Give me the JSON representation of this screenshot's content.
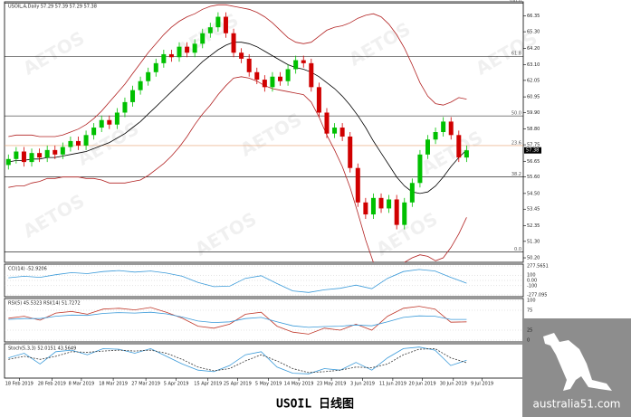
{
  "chart_data": {
    "type": "candlestick",
    "title": "USOIL,A,Daily 57.29 57.39 57.29 57.38",
    "candles": [
      [
        56.4,
        57.1,
        56.1,
        56.8
      ],
      [
        56.8,
        57.6,
        56.5,
        57.3
      ],
      [
        57.3,
        57.6,
        56.3,
        56.6
      ],
      [
        56.6,
        57.5,
        56.3,
        57.2
      ],
      [
        57.2,
        57.5,
        56.6,
        56.9
      ],
      [
        56.9,
        57.7,
        56.6,
        57.4
      ],
      [
        57.4,
        57.7,
        56.8,
        57.1
      ],
      [
        57.1,
        57.9,
        56.8,
        57.6
      ],
      [
        57.6,
        58.3,
        57.3,
        58.0
      ],
      [
        58.0,
        58.3,
        57.4,
        57.7
      ],
      [
        57.7,
        58.7,
        57.4,
        58.4
      ],
      [
        58.4,
        59.2,
        58.1,
        58.9
      ],
      [
        58.9,
        59.7,
        58.6,
        59.4
      ],
      [
        59.4,
        59.7,
        58.8,
        59.1
      ],
      [
        59.1,
        60.2,
        58.8,
        59.9
      ],
      [
        59.9,
        60.9,
        59.6,
        60.6
      ],
      [
        60.6,
        61.7,
        60.3,
        61.4
      ],
      [
        61.4,
        62.3,
        61.1,
        62.0
      ],
      [
        62.0,
        62.9,
        61.7,
        62.6
      ],
      [
        62.6,
        63.5,
        62.3,
        63.2
      ],
      [
        63.2,
        64.1,
        62.9,
        63.8
      ],
      [
        63.8,
        64.1,
        63.3,
        63.6
      ],
      [
        63.6,
        64.6,
        63.3,
        64.3
      ],
      [
        64.3,
        64.6,
        63.6,
        63.9
      ],
      [
        63.9,
        64.8,
        63.6,
        64.5
      ],
      [
        64.5,
        65.5,
        64.2,
        65.2
      ],
      [
        65.2,
        65.9,
        64.9,
        65.6
      ],
      [
        65.6,
        66.6,
        65.3,
        66.3
      ],
      [
        66.3,
        66.6,
        64.9,
        65.2
      ],
      [
        65.2,
        65.5,
        63.6,
        63.9
      ],
      [
        63.9,
        64.2,
        63.2,
        63.5
      ],
      [
        63.5,
        63.8,
        62.3,
        62.6
      ],
      [
        62.6,
        62.9,
        61.8,
        62.1
      ],
      [
        62.1,
        62.4,
        61.3,
        61.6
      ],
      [
        61.6,
        62.6,
        61.3,
        62.3
      ],
      [
        62.3,
        62.6,
        61.7,
        62.0
      ],
      [
        62.0,
        63.1,
        61.7,
        62.8
      ],
      [
        62.8,
        63.7,
        62.5,
        63.4
      ],
      [
        63.4,
        63.7,
        62.9,
        63.2
      ],
      [
        63.2,
        63.5,
        61.3,
        61.6
      ],
      [
        61.6,
        61.9,
        59.6,
        59.9
      ],
      [
        59.9,
        60.2,
        58.2,
        58.5
      ],
      [
        58.5,
        59.2,
        58.2,
        58.9
      ],
      [
        58.9,
        59.2,
        58.0,
        58.3
      ],
      [
        58.3,
        58.6,
        55.9,
        56.2
      ],
      [
        56.2,
        56.5,
        53.6,
        53.9
      ],
      [
        53.9,
        54.2,
        52.8,
        53.1
      ],
      [
        53.1,
        54.5,
        52.8,
        54.2
      ],
      [
        54.2,
        54.5,
        53.2,
        53.5
      ],
      [
        53.5,
        54.4,
        53.2,
        54.1
      ],
      [
        54.1,
        54.4,
        52.1,
        52.4
      ],
      [
        52.4,
        54.2,
        52.1,
        53.9
      ],
      [
        53.9,
        55.5,
        53.6,
        55.2
      ],
      [
        55.2,
        57.4,
        54.9,
        57.1
      ],
      [
        57.1,
        58.4,
        56.8,
        58.1
      ],
      [
        58.1,
        58.9,
        57.8,
        58.6
      ],
      [
        58.6,
        59.6,
        58.3,
        59.3
      ],
      [
        59.3,
        59.6,
        58.1,
        58.4
      ],
      [
        58.4,
        58.7,
        56.6,
        56.9
      ],
      [
        56.9,
        57.7,
        56.6,
        57.38
      ]
    ],
    "up_color": "#00c000",
    "down_color": "#d00000",
    "ma": {
      "color": "#000000",
      "values": [
        56.6,
        56.7,
        56.7,
        56.8,
        56.8,
        56.9,
        56.9,
        57.0,
        57.1,
        57.2,
        57.3,
        57.5,
        57.7,
        57.9,
        58.2,
        58.5,
        58.9,
        59.3,
        59.8,
        60.3,
        60.8,
        61.3,
        61.8,
        62.3,
        62.8,
        63.3,
        63.7,
        64.1,
        64.4,
        64.6,
        64.6,
        64.5,
        64.3,
        64.0,
        63.7,
        63.4,
        63.1,
        62.9,
        62.8,
        62.6,
        62.3,
        61.9,
        61.5,
        61.0,
        60.4,
        59.7,
        58.9,
        58.0,
        57.2,
        56.4,
        55.6,
        55.0,
        54.6,
        54.5,
        54.6,
        55.0,
        55.6,
        56.3,
        56.9,
        57.4
      ]
    },
    "bands": {
      "color": "#b22222",
      "upper": [
        58.3,
        58.4,
        58.4,
        58.4,
        58.3,
        58.3,
        58.3,
        58.4,
        58.6,
        58.8,
        59.1,
        59.5,
        60.0,
        60.6,
        61.2,
        61.8,
        62.5,
        63.2,
        63.9,
        64.5,
        65.1,
        65.6,
        66.0,
        66.3,
        66.5,
        66.8,
        67.0,
        67.1,
        67.1,
        67.0,
        66.9,
        66.8,
        66.6,
        66.3,
        65.9,
        65.4,
        64.9,
        64.6,
        64.5,
        64.6,
        65.0,
        65.4,
        65.6,
        65.7,
        65.9,
        66.2,
        66.4,
        66.5,
        66.3,
        65.8,
        65.1,
        64.2,
        63.1,
        61.9,
        61.0,
        60.5,
        60.4,
        60.6,
        60.9,
        60.8
      ],
      "lower": [
        54.9,
        55.0,
        55.0,
        55.2,
        55.3,
        55.5,
        55.5,
        55.6,
        55.6,
        55.6,
        55.5,
        55.5,
        55.4,
        55.2,
        55.2,
        55.2,
        55.3,
        55.4,
        55.7,
        56.1,
        56.5,
        57.0,
        57.6,
        58.3,
        59.1,
        59.8,
        60.4,
        61.1,
        61.7,
        62.2,
        62.3,
        62.2,
        62.0,
        61.7,
        61.5,
        61.4,
        61.3,
        61.2,
        61.1,
        60.6,
        59.6,
        58.4,
        57.4,
        56.3,
        54.9,
        53.2,
        51.4,
        49.9,
        49.5,
        49.4,
        49.6,
        49.9,
        50.2,
        50.4,
        50.3,
        50.0,
        50.2,
        50.9,
        51.8,
        52.9
      ]
    },
    "xlim": [
      -0.5,
      66.3
    ],
    "xticks": [
      {
        "value": 1.4,
        "label": "18 Feb 2019"
      },
      {
        "value": 5.6,
        "label": "28 Feb 2019"
      },
      {
        "value": 9.4,
        "label": "8 Mar 2019"
      },
      {
        "value": 13.5,
        "label": "18 Mar 2019"
      },
      {
        "value": 17.7,
        "label": "27 Mar 2019"
      },
      {
        "value": 21.6,
        "label": "5 Apr 2019"
      },
      {
        "value": 25.7,
        "label": "15 Apr 2019"
      },
      {
        "value": 29.5,
        "label": "25 Apr 2019"
      },
      {
        "value": 33.5,
        "label": "5 May 2019"
      },
      {
        "value": 37.4,
        "label": "14 May 2019"
      },
      {
        "value": 41.6,
        "label": "23 May 2019"
      },
      {
        "value": 45.6,
        "label": "3 Jun 2019"
      },
      {
        "value": 49.5,
        "label": "11 Jun 2019"
      },
      {
        "value": 53.3,
        "label": "20 Jun 2019"
      },
      {
        "value": 57.3,
        "label": "30 Jun 2019"
      },
      {
        "value": 61.0,
        "label": "9 Jul 2019"
      }
    ],
    "ylim": [
      49.9,
      67.3
    ],
    "yticks": [
      66.35,
      {
        "value": 65.3,
        "label": "65.30"
      },
      {
        "value": 64.2,
        "label": "64.20"
      },
      {
        "value": 63.1,
        "label": "63.10"
      },
      62.05,
      {
        "value": 60.95,
        "label": "60.95"
      },
      {
        "value": 59.9,
        "label": "59.90"
      },
      {
        "value": 58.8,
        "label": "58.80"
      },
      57.75,
      56.65,
      {
        "value": 55.6,
        "label": "55.60"
      },
      {
        "value": 54.5,
        "label": "54.50"
      },
      53.45,
      52.35,
      {
        "value": 51.3,
        "label": "51.30"
      },
      {
        "value": 50.2,
        "label": "50.20"
      }
    ],
    "last_price": 57.38,
    "levels": [
      {
        "label": "100.0",
        "price": 67.2,
        "color": "#000000"
      },
      {
        "label": "61.8",
        "price": 63.66,
        "color": "#000000"
      },
      {
        "label": "50.0",
        "price": 59.68,
        "color": "#000000"
      },
      {
        "label": "23.6",
        "price": 57.7,
        "color": "#e8a070"
      },
      {
        "label": "38.2",
        "price": 55.6,
        "color": "#000000"
      },
      {
        "label": "0.0",
        "price": 50.6,
        "color": "#000000"
      }
    ],
    "indicators": [
      {
        "label": "CCI(14) -52.9206",
        "ylim": [
          -277.095,
          277.5651
        ],
        "yticks": [
          277.5651,
          100,
          {
            "value": 0,
            "label": "0.00"
          },
          -100,
          -277.095
        ],
        "lines": [
          {
            "color": "#3a9ad9",
            "values": [
              50,
              80,
              60,
              110,
              150,
              130,
              170,
              190,
              160,
              180,
              140,
              80,
              -40,
              -120,
              -110,
              40,
              90,
              -60,
              -200,
              -230,
              -180,
              -150,
              -90,
              -160,
              40,
              170,
              210,
              180,
              60,
              -53
            ]
          }
        ]
      },
      {
        "label": "RSI(5) 45.5323 RSI(14) 51.7272",
        "ylim": [
          0,
          100
        ],
        "yticks": [
          100,
          75,
          25,
          0
        ],
        "lines": [
          {
            "color": "#c0392b",
            "values": [
              55,
              60,
              50,
              68,
              72,
              65,
              78,
              80,
              76,
              82,
              70,
              55,
              35,
              30,
              40,
              65,
              70,
              35,
              20,
              15,
              30,
              25,
              40,
              25,
              60,
              80,
              85,
              78,
              45,
              46
            ]
          },
          {
            "color": "#3a9ad9",
            "values": [
              52,
              54,
              54,
              60,
              63,
              62,
              67,
              69,
              68,
              70,
              66,
              58,
              48,
              44,
              46,
              54,
              57,
              46,
              36,
              32,
              34,
              35,
              38,
              36,
              46,
              57,
              61,
              60,
              52,
              52
            ]
          }
        ]
      },
      {
        "label": "Stoch(5,3,3) 52.0151 43.5649",
        "ylim": [
          0,
          100
        ],
        "yticks": [],
        "lines": [
          {
            "color": "#3a9ad9",
            "values": [
              60,
              75,
              40,
              80,
              85,
              70,
              90,
              88,
              75,
              90,
              65,
              40,
              20,
              15,
              35,
              70,
              80,
              30,
              10,
              8,
              25,
              20,
              45,
              20,
              60,
              90,
              95,
              85,
              35,
              52
            ]
          },
          {
            "color": "#333333",
            "dashed": true,
            "values": [
              55,
              65,
              55,
              65,
              80,
              78,
              82,
              85,
              82,
              85,
              75,
              55,
              30,
              18,
              25,
              50,
              70,
              50,
              25,
              12,
              15,
              20,
              30,
              28,
              40,
              70,
              88,
              90,
              60,
              44
            ]
          }
        ]
      }
    ],
    "watermark": "AETOS",
    "caption": "USOIL 日线图",
    "logo_text": "australia51.com"
  }
}
